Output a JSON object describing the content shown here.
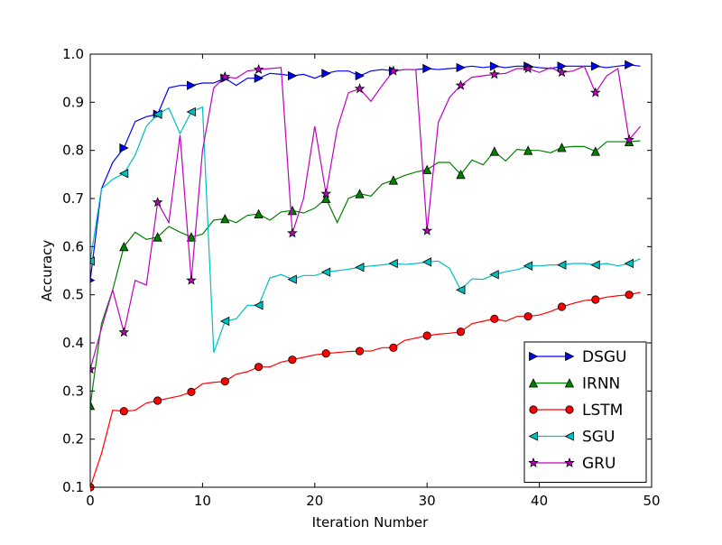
{
  "chart_data": {
    "type": "line",
    "title": "",
    "xlabel": "Iteration Number",
    "ylabel": "Accuracy",
    "xlim": [
      0,
      50
    ],
    "ylim": [
      0.1,
      1.0
    ],
    "xticks": [
      0,
      10,
      20,
      30,
      40,
      50
    ],
    "yticks": [
      0.1,
      0.2,
      0.3,
      0.4,
      0.5,
      0.6,
      0.7,
      0.8,
      0.9,
      1.0
    ],
    "xtick_labels": [
      "0",
      "10",
      "20",
      "30",
      "40",
      "50"
    ],
    "ytick_labels": [
      "0.1",
      "0.2",
      "0.3",
      "0.4",
      "0.5",
      "0.6",
      "0.7",
      "0.8",
      "0.9",
      "1.0"
    ],
    "grid": false,
    "legend_position": "lower-right",
    "marker_every": 3,
    "x": [
      0,
      1,
      2,
      3,
      4,
      5,
      6,
      7,
      8,
      9,
      10,
      11,
      12,
      13,
      14,
      15,
      16,
      17,
      18,
      19,
      20,
      21,
      22,
      23,
      24,
      25,
      26,
      27,
      28,
      29,
      30,
      31,
      32,
      33,
      34,
      35,
      36,
      37,
      38,
      39,
      40,
      41,
      42,
      43,
      44,
      45,
      46,
      47,
      48,
      49
    ],
    "series": [
      {
        "name": "DSGU",
        "color": "#0000ff",
        "marker": "triangle-right",
        "values": [
          0.53,
          0.72,
          0.775,
          0.805,
          0.86,
          0.87,
          0.875,
          0.93,
          0.935,
          0.935,
          0.94,
          0.94,
          0.95,
          0.935,
          0.95,
          0.95,
          0.96,
          0.958,
          0.955,
          0.958,
          0.95,
          0.96,
          0.965,
          0.965,
          0.955,
          0.965,
          0.968,
          0.965,
          0.968,
          0.968,
          0.97,
          0.968,
          0.97,
          0.972,
          0.975,
          0.972,
          0.975,
          0.972,
          0.975,
          0.975,
          0.972,
          0.97,
          0.975,
          0.975,
          0.975,
          0.975,
          0.972,
          0.975,
          0.978,
          0.975
        ]
      },
      {
        "name": "IRNN",
        "color": "#008000",
        "marker": "triangle-up",
        "values": [
          0.27,
          0.44,
          0.51,
          0.6,
          0.63,
          0.615,
          0.62,
          0.642,
          0.63,
          0.62,
          0.626,
          0.655,
          0.658,
          0.65,
          0.665,
          0.668,
          0.655,
          0.672,
          0.675,
          0.67,
          0.68,
          0.7,
          0.65,
          0.7,
          0.71,
          0.705,
          0.73,
          0.738,
          0.748,
          0.755,
          0.76,
          0.775,
          0.775,
          0.75,
          0.78,
          0.77,
          0.798,
          0.778,
          0.802,
          0.8,
          0.8,
          0.795,
          0.806,
          0.808,
          0.808,
          0.798,
          0.818,
          0.818,
          0.818,
          0.82
        ]
      },
      {
        "name": "LSTM",
        "color": "#ff0000",
        "marker": "circle",
        "values": [
          0.1,
          0.17,
          0.26,
          0.258,
          0.26,
          0.275,
          0.28,
          0.285,
          0.29,
          0.298,
          0.315,
          0.318,
          0.32,
          0.335,
          0.34,
          0.35,
          0.35,
          0.36,
          0.365,
          0.37,
          0.375,
          0.378,
          0.38,
          0.382,
          0.383,
          0.383,
          0.39,
          0.39,
          0.405,
          0.41,
          0.415,
          0.418,
          0.42,
          0.423,
          0.44,
          0.445,
          0.45,
          0.445,
          0.455,
          0.455,
          0.458,
          0.465,
          0.475,
          0.482,
          0.488,
          0.49,
          0.495,
          0.498,
          0.5,
          0.505
        ]
      },
      {
        "name": "SGU",
        "color": "#00bfbf",
        "marker": "triangle-left",
        "values": [
          0.57,
          0.72,
          0.74,
          0.752,
          0.79,
          0.85,
          0.875,
          0.888,
          0.835,
          0.88,
          0.89,
          0.38,
          0.445,
          0.45,
          0.478,
          0.478,
          0.535,
          0.542,
          0.532,
          0.54,
          0.54,
          0.547,
          0.55,
          0.553,
          0.557,
          0.56,
          0.562,
          0.565,
          0.563,
          0.565,
          0.568,
          0.57,
          0.555,
          0.51,
          0.533,
          0.532,
          0.542,
          0.548,
          0.552,
          0.56,
          0.56,
          0.562,
          0.562,
          0.565,
          0.565,
          0.562,
          0.565,
          0.56,
          0.565,
          0.575
        ]
      },
      {
        "name": "GRU",
        "color": "#bf00bf",
        "marker": "star",
        "values": [
          0.345,
          0.43,
          0.51,
          0.422,
          0.53,
          0.52,
          0.692,
          0.65,
          0.832,
          0.53,
          0.8,
          0.93,
          0.953,
          0.95,
          0.965,
          0.968,
          0.97,
          0.972,
          0.628,
          0.7,
          0.85,
          0.71,
          0.845,
          0.92,
          0.928,
          0.902,
          0.935,
          0.965,
          0.968,
          0.968,
          0.633,
          0.858,
          0.91,
          0.935,
          0.952,
          0.955,
          0.958,
          0.96,
          0.97,
          0.97,
          0.962,
          0.972,
          0.962,
          0.965,
          0.975,
          0.92,
          0.955,
          0.97,
          0.822,
          0.85
        ]
      }
    ]
  }
}
